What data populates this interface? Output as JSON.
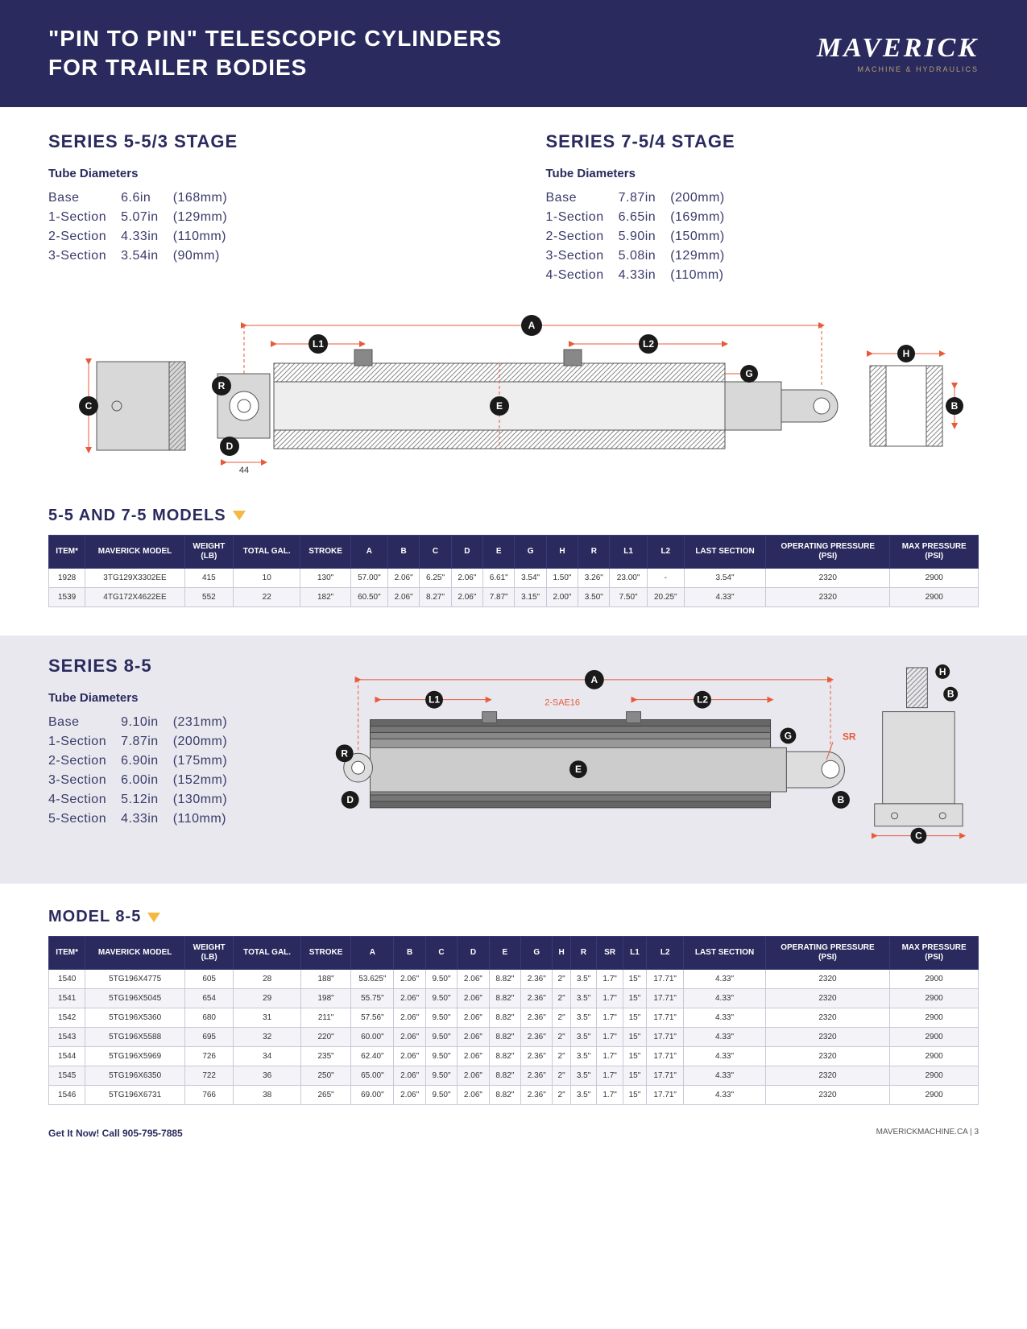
{
  "header": {
    "title_line1": "\"PIN TO PIN\" TELESCOPIC CYLINDERS",
    "title_line2": "FOR TRAILER BODIES",
    "logo_main": "MAVERICK",
    "logo_sub": "MACHINE & HYDRAULICS"
  },
  "colors": {
    "brand_navy": "#2a2a5e",
    "accent_gold": "#f5b840",
    "dim_red": "#e85a3a",
    "grey_bg": "#e8e8ee",
    "text": "#2a2a5a"
  },
  "series_55": {
    "title": "SERIES 5-5/3 STAGE",
    "sub": "Tube Diameters",
    "rows": [
      {
        "label": "Base",
        "in": "6.6in",
        "mm": "(168mm)"
      },
      {
        "label": "1-Section",
        "in": "5.07in",
        "mm": "(129mm)"
      },
      {
        "label": "2-Section",
        "in": "4.33in",
        "mm": "(110mm)"
      },
      {
        "label": "3-Section",
        "in": "3.54in",
        "mm": "(90mm)"
      }
    ]
  },
  "series_75": {
    "title": "SERIES 7-5/4 STAGE",
    "sub": "Tube Diameters",
    "rows": [
      {
        "label": "Base",
        "in": "7.87in",
        "mm": "(200mm)"
      },
      {
        "label": "1-Section",
        "in": "6.65in",
        "mm": "(169mm)"
      },
      {
        "label": "2-Section",
        "in": "5.90in",
        "mm": "(150mm)"
      },
      {
        "label": "3-Section",
        "in": "5.08in",
        "mm": "(129mm)"
      },
      {
        "label": "4-Section",
        "in": "4.33in",
        "mm": "(110mm)"
      }
    ]
  },
  "diagram1": {
    "labels": [
      "A",
      "B",
      "C",
      "D",
      "E",
      "G",
      "H",
      "R",
      "L1",
      "L2"
    ],
    "dim_44": "44",
    "badges": {
      "A": "A",
      "B": "B",
      "C": "C",
      "D": "D",
      "E": "E",
      "G": "G",
      "H": "H",
      "R": "R",
      "L1": "L1",
      "L2": "L2"
    }
  },
  "models_55_75": {
    "title": "5-5 AND 7-5 MODELS",
    "columns": [
      "ITEM*",
      "MAVERICK MODEL",
      "WEIGHT (LB)",
      "TOTAL GAL.",
      "STROKE",
      "A",
      "B",
      "C",
      "D",
      "E",
      "G",
      "H",
      "R",
      "L1",
      "L2",
      "LAST SECTION",
      "OPERATING PRESSURE (PSI)",
      "MAX PRESSURE (PSI)"
    ],
    "rows": [
      [
        "1928",
        "3TG129X3302EE",
        "415",
        "10",
        "130\"",
        "57.00\"",
        "2.06\"",
        "6.25\"",
        "2.06\"",
        "6.61\"",
        "3.54\"",
        "1.50\"",
        "3.26\"",
        "23.00\"",
        "-",
        "3.54\"",
        "2320",
        "2900"
      ],
      [
        "1539",
        "4TG172X4622EE",
        "552",
        "22",
        "182\"",
        "60.50\"",
        "2.06\"",
        "8.27\"",
        "2.06\"",
        "7.87\"",
        "3.15\"",
        "2.00\"",
        "3.50\"",
        "7.50\"",
        "20.25\"",
        "4.33\"",
        "2320",
        "2900"
      ]
    ]
  },
  "series_85": {
    "title": "SERIES 8-5",
    "sub": "Tube Diameters",
    "rows": [
      {
        "label": "Base",
        "in": "9.10in",
        "mm": "(231mm)"
      },
      {
        "label": "1-Section",
        "in": "7.87in",
        "mm": "(200mm)"
      },
      {
        "label": "2-Section",
        "in": "6.90in",
        "mm": "(175mm)"
      },
      {
        "label": "3-Section",
        "in": "6.00in",
        "mm": "(152mm)"
      },
      {
        "label": "4-Section",
        "in": "5.12in",
        "mm": "(130mm)"
      },
      {
        "label": "5-Section",
        "in": "4.33in",
        "mm": "(110mm)"
      }
    ]
  },
  "diagram2": {
    "port_label": "2-SAE16",
    "sr_label": "SR",
    "badges": {
      "A": "A",
      "B": "B",
      "C": "C",
      "D": "D",
      "E": "E",
      "G": "G",
      "H": "H",
      "R": "R",
      "L1": "L1",
      "L2": "L2"
    }
  },
  "model_85": {
    "title": "MODEL 8-5",
    "columns": [
      "ITEM*",
      "MAVERICK MODEL",
      "WEIGHT (LB)",
      "TOTAL GAL.",
      "STROKE",
      "A",
      "B",
      "C",
      "D",
      "E",
      "G",
      "H",
      "R",
      "SR",
      "L1",
      "L2",
      "LAST SECTION",
      "OPERATING PRESSURE (PSI)",
      "MAX PRESSURE (PSI)"
    ],
    "rows": [
      [
        "1540",
        "5TG196X4775",
        "605",
        "28",
        "188\"",
        "53.625\"",
        "2.06\"",
        "9.50\"",
        "2.06\"",
        "8.82\"",
        "2.36\"",
        "2\"",
        "3.5\"",
        "1.7\"",
        "15\"",
        "17.71\"",
        "4.33\"",
        "2320",
        "2900"
      ],
      [
        "1541",
        "5TG196X5045",
        "654",
        "29",
        "198\"",
        "55.75\"",
        "2.06\"",
        "9.50\"",
        "2.06\"",
        "8.82\"",
        "2.36\"",
        "2\"",
        "3.5\"",
        "1.7\"",
        "15\"",
        "17.71\"",
        "4.33\"",
        "2320",
        "2900"
      ],
      [
        "1542",
        "5TG196X5360",
        "680",
        "31",
        "211\"",
        "57.56\"",
        "2.06\"",
        "9.50\"",
        "2.06\"",
        "8.82\"",
        "2.36\"",
        "2\"",
        "3.5\"",
        "1.7\"",
        "15\"",
        "17.71\"",
        "4.33\"",
        "2320",
        "2900"
      ],
      [
        "1543",
        "5TG196X5588",
        "695",
        "32",
        "220\"",
        "60.00\"",
        "2.06\"",
        "9.50\"",
        "2.06\"",
        "8.82\"",
        "2.36\"",
        "2\"",
        "3.5\"",
        "1.7\"",
        "15\"",
        "17.71\"",
        "4.33\"",
        "2320",
        "2900"
      ],
      [
        "1544",
        "5TG196X5969",
        "726",
        "34",
        "235\"",
        "62.40\"",
        "2.06\"",
        "9.50\"",
        "2.06\"",
        "8.82\"",
        "2.36\"",
        "2\"",
        "3.5\"",
        "1.7\"",
        "15\"",
        "17.71\"",
        "4.33\"",
        "2320",
        "2900"
      ],
      [
        "1545",
        "5TG196X6350",
        "722",
        "36",
        "250\"",
        "65.00\"",
        "2.06\"",
        "9.50\"",
        "2.06\"",
        "8.82\"",
        "2.36\"",
        "2\"",
        "3.5\"",
        "1.7\"",
        "15\"",
        "17.71\"",
        "4.33\"",
        "2320",
        "2900"
      ],
      [
        "1546",
        "5TG196X6731",
        "766",
        "38",
        "265\"",
        "69.00\"",
        "2.06\"",
        "9.50\"",
        "2.06\"",
        "8.82\"",
        "2.36\"",
        "2\"",
        "3.5\"",
        "1.7\"",
        "15\"",
        "17.71\"",
        "4.33\"",
        "2320",
        "2900"
      ]
    ]
  },
  "footer": {
    "left": "Get It Now! Call 905-795-7885",
    "right": "MAVERICKMACHINE.CA | 3"
  }
}
